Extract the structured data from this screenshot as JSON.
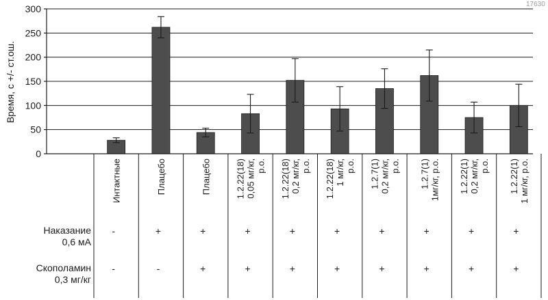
{
  "corner_text": "17630",
  "chart_data": {
    "type": "bar",
    "ylabel": "Время, с +/- ст.ош.",
    "ylim": [
      0,
      300
    ],
    "yticks": [
      "0",
      "50",
      "100",
      "150",
      "200",
      "250",
      "300"
    ],
    "grid": true,
    "categories": [
      "Интактные",
      "Плацебо",
      "Плацебо",
      "1.2.22(18)\n0,05 мг/кг,\nр.о.",
      "1.2.22(18)\n0,2 мг/кг,\nр.о.",
      "1.2.22(18)\n1 мг/кг,\nр.о.",
      "1.2.7(1)\n0,2 мг/кг,\nр.о.",
      "1.2.7(1)\n1мг/кг, р.о.",
      "1.2.22(1)\n0,2 мг/кг,\nр.о.",
      "1.2.22(1)\n1 мг/кг, р.о."
    ],
    "values": [
      28,
      262,
      44,
      83,
      152,
      93,
      135,
      162,
      75,
      100
    ],
    "errors": [
      5,
      22,
      9,
      40,
      45,
      46,
      41,
      53,
      32,
      44
    ]
  },
  "rows": [
    {
      "label": "Наказание\n0,6 мА",
      "marks": [
        "-",
        "+",
        "+",
        "+",
        "+",
        "+",
        "+",
        "+",
        "+",
        "+"
      ]
    },
    {
      "label": "Скополамин\n0,3 мг/кг",
      "marks": [
        "-",
        "-",
        "+",
        "+",
        "+",
        "+",
        "+",
        "+",
        "+",
        "+"
      ]
    }
  ]
}
